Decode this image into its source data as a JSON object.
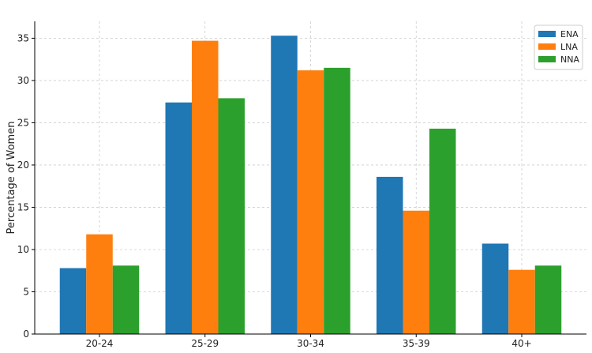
{
  "chart_data": {
    "type": "bar",
    "title": "",
    "xlabel": "",
    "ylabel": "Percentage of Women",
    "categories": [
      "20-24",
      "25-29",
      "30-34",
      "35-39",
      "40+"
    ],
    "series": [
      {
        "name": "ENA",
        "color": "#1f77b4",
        "values": [
          7.8,
          27.4,
          35.3,
          18.6,
          10.7
        ]
      },
      {
        "name": "LNA",
        "color": "#ff7f0e",
        "values": [
          11.8,
          34.7,
          31.2,
          14.6,
          7.6
        ]
      },
      {
        "name": "NNA",
        "color": "#2ca02c",
        "values": [
          8.1,
          27.9,
          31.5,
          24.3,
          8.1
        ]
      }
    ],
    "ylim": [
      0,
      37
    ],
    "yticks": [
      0,
      5,
      10,
      15,
      20,
      25,
      30,
      35
    ],
    "grid": true,
    "legend_position": "top-right"
  }
}
